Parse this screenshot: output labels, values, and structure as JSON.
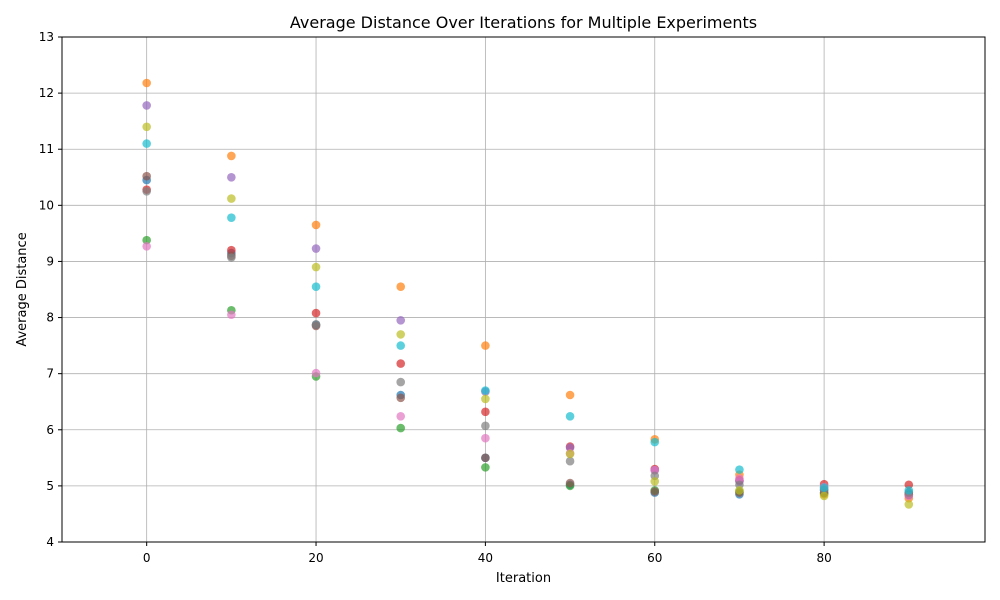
{
  "chart_data": {
    "type": "scatter",
    "title": "Average Distance Over Iterations for Multiple Experiments",
    "xlabel": "Iteration",
    "ylabel": "Average Distance",
    "xlim": [
      -10,
      99
    ],
    "ylim": [
      4,
      13
    ],
    "xticks": [
      0,
      20,
      40,
      60,
      80
    ],
    "yticks": [
      4,
      5,
      6,
      7,
      8,
      9,
      10,
      11,
      12,
      13
    ],
    "grid": true,
    "legend": "none",
    "x": [
      0,
      10,
      20,
      30,
      40,
      50,
      60,
      70,
      80,
      90
    ],
    "series": [
      {
        "color": "#1f77b4",
        "values": [
          10.45,
          9.15,
          7.87,
          6.62,
          5.5,
          5.02,
          4.88,
          4.85,
          4.92,
          4.85
        ]
      },
      {
        "color": "#ff7f0e",
        "values": [
          12.18,
          10.88,
          9.65,
          8.55,
          7.5,
          6.62,
          5.83,
          5.2,
          4.85,
          4.78
        ]
      },
      {
        "color": "#2ca02c",
        "values": [
          9.38,
          8.13,
          6.95,
          6.03,
          5.33,
          5.0,
          4.92,
          4.9,
          4.88,
          4.84
        ]
      },
      {
        "color": "#d62728",
        "values": [
          10.28,
          9.2,
          8.08,
          7.18,
          6.32,
          5.7,
          5.3,
          5.1,
          5.03,
          5.02
        ]
      },
      {
        "color": "#9467bd",
        "values": [
          11.78,
          10.5,
          9.23,
          7.95,
          6.68,
          5.68,
          5.28,
          5.08,
          4.95,
          4.88
        ]
      },
      {
        "color": "#8c564b",
        "values": [
          10.52,
          9.1,
          7.85,
          6.57,
          5.5,
          5.05,
          4.9,
          4.88,
          4.87,
          4.84
        ]
      },
      {
        "color": "#e377c2",
        "values": [
          9.27,
          8.05,
          7.01,
          6.24,
          5.85,
          5.58,
          5.28,
          5.13,
          4.98,
          4.82
        ]
      },
      {
        "color": "#7f7f7f",
        "values": [
          10.25,
          9.07,
          7.88,
          6.85,
          6.07,
          5.44,
          5.18,
          5.02,
          4.93,
          4.88
        ]
      },
      {
        "color": "#bcbd22",
        "values": [
          11.4,
          10.12,
          8.9,
          7.7,
          6.55,
          5.57,
          5.08,
          4.92,
          4.82,
          4.67
        ]
      },
      {
        "color": "#17becf",
        "values": [
          11.1,
          9.78,
          8.55,
          7.5,
          6.7,
          6.24,
          5.78,
          5.29,
          4.97,
          4.92
        ]
      }
    ]
  }
}
